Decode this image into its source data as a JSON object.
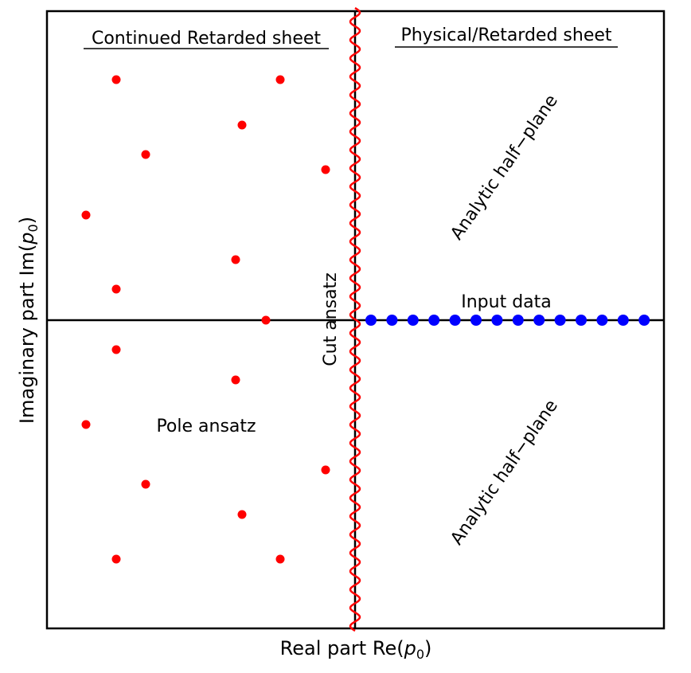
{
  "diagram": {
    "x_axis_label": "Real part Re(",
    "x_axis_sym": "p",
    "x_axis_sub": "0",
    "x_axis_close": ")",
    "y_axis_label": "Imaginary part Im(",
    "y_axis_sym": "p",
    "y_axis_sub": "0",
    "y_axis_close": ")",
    "left_title": "Continued Retarded sheet",
    "right_title": "Physical/Retarded sheet",
    "pole_label": "Pole ansatz",
    "cut_label": "Cut ansatz",
    "input_label": "Input data",
    "analytic_upper": "Analytic half−plane",
    "analytic_lower": "Analytic half−plane"
  },
  "colors": {
    "poles": "#ff0000",
    "cut": "#ff0000",
    "input": "#0000ff",
    "axes": "#000000"
  }
}
